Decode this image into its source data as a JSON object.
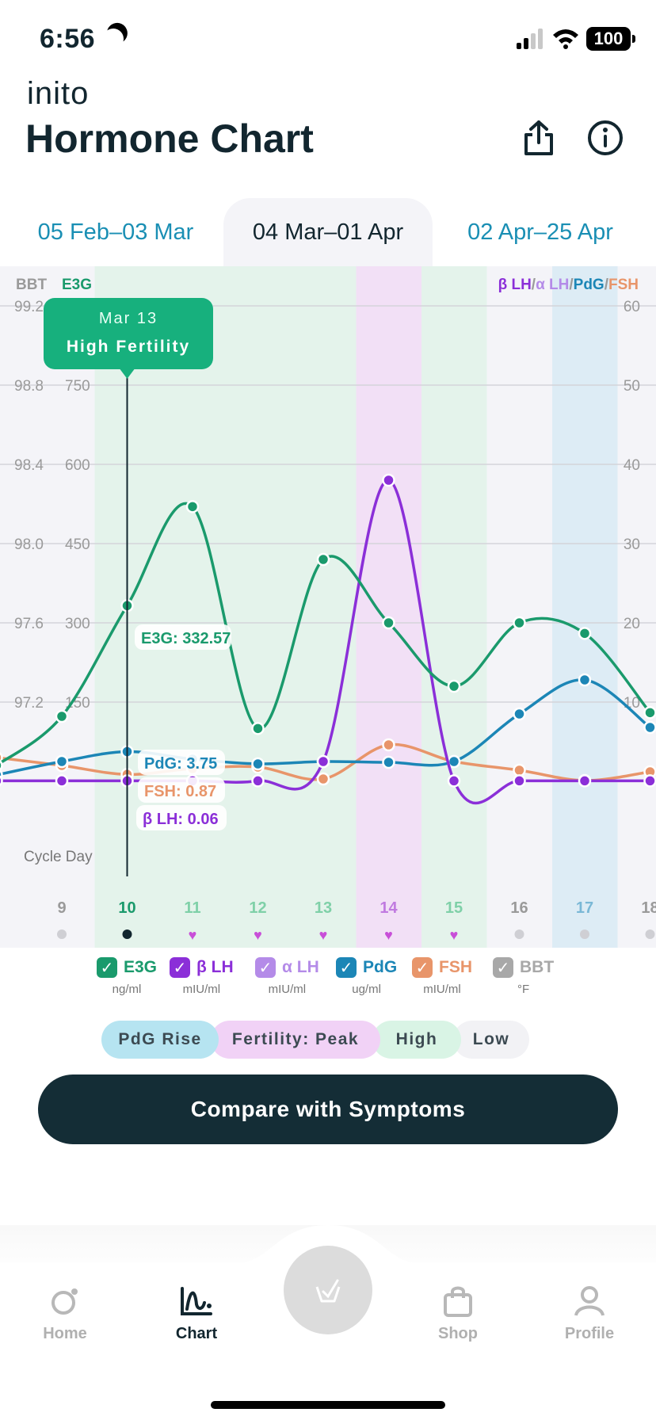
{
  "status_bar": {
    "time": "6:56",
    "battery": "100"
  },
  "header": {
    "brand": "inito",
    "title": "Hormone Chart"
  },
  "tabs": [
    {
      "label": "05 Feb–03 Mar",
      "active": false
    },
    {
      "label": "04 Mar–01 Apr",
      "active": true
    },
    {
      "label": "02 Apr–25 Apr",
      "active": false
    }
  ],
  "chart_top_labels": {
    "bbt": "BBT",
    "e3g": "E3G",
    "lh_beta": "β LH",
    "lh_alpha": "α LH",
    "pdg": "PdG",
    "fsh": "FSH",
    "sep": "/"
  },
  "tooltip": {
    "date": "Mar 13",
    "status": "High Fertility"
  },
  "readouts": {
    "e3g": "E3G: 332.57",
    "pdg": "PdG: 3.75",
    "fsh": "FSH: 0.87",
    "lh": "β LH: 0.06"
  },
  "cycle_day_label": "Cycle Day",
  "chart_data": {
    "type": "line",
    "x": [
      8,
      9,
      10,
      11,
      12,
      13,
      14,
      15,
      16,
      17,
      18
    ],
    "selected_day": 10,
    "left_axis_bbt": {
      "ticks": [
        "99.2",
        "98.8",
        "98.4",
        "98.0",
        "97.6",
        "97.2"
      ],
      "values": [
        99.2,
        98.8,
        98.4,
        98.0,
        97.6,
        97.2
      ]
    },
    "left_axis_e3g": {
      "ticks": [
        "750",
        "600",
        "450",
        "300",
        "150"
      ],
      "values": [
        750,
        600,
        450,
        300,
        150
      ],
      "range": [
        0,
        900
      ]
    },
    "right_axis": {
      "ticks": [
        "60",
        "50",
        "40",
        "30",
        "20",
        "10"
      ],
      "values": [
        60,
        50,
        40,
        30,
        20,
        10
      ],
      "range": [
        0,
        60
      ]
    },
    "x_tick_labels": [
      "9",
      "10",
      "11",
      "12",
      "13",
      "14",
      "15",
      "16",
      "17",
      "18"
    ],
    "day_markers": [
      {
        "day": 9,
        "marker": "dot"
      },
      {
        "day": 10,
        "marker": "dot-selected"
      },
      {
        "day": 11,
        "marker": "heart"
      },
      {
        "day": 12,
        "marker": "heart"
      },
      {
        "day": 13,
        "marker": "heart"
      },
      {
        "day": 14,
        "marker": "heart"
      },
      {
        "day": 15,
        "marker": "heart"
      },
      {
        "day": 16,
        "marker": "dot"
      },
      {
        "day": 17,
        "marker": "dot"
      },
      {
        "day": 18,
        "marker": "dot"
      }
    ],
    "phase_bands": [
      {
        "from": 10,
        "to": 13,
        "phase": "High"
      },
      {
        "from": 14,
        "to": 14,
        "phase": "Fertility: Peak"
      },
      {
        "from": 15,
        "to": 15,
        "phase": "High"
      },
      {
        "from": 17,
        "to": 17,
        "phase": "PdG Rise"
      }
    ],
    "series": [
      {
        "name": "E3G",
        "axis": "left",
        "color": "#1a9a6c",
        "values": [
          30,
          123,
          332.57,
          520,
          100,
          420,
          300,
          180,
          300,
          280,
          130
        ]
      },
      {
        "name": "PdG",
        "axis": "right",
        "color": "#1c86b6",
        "values": [
          0.8,
          2.5,
          3.75,
          2.8,
          2.2,
          2.5,
          2.4,
          2.5,
          8.5,
          12.8,
          6.8
        ]
      },
      {
        "name": "FSH",
        "axis": "right",
        "color": "#e8956a",
        "values": [
          3,
          2.0,
          0.87,
          1.6,
          1.8,
          0.3,
          4.6,
          2.5,
          1.4,
          0.1,
          1.2
        ]
      },
      {
        "name": "β LH",
        "axis": "right",
        "color": "#8b2fd8",
        "values": [
          0.06,
          0.06,
          0.06,
          0.06,
          0.06,
          2.5,
          38,
          0.06,
          0.06,
          0.06,
          0.06
        ]
      }
    ]
  },
  "legend": [
    {
      "name": "E3G",
      "unit": "ng/ml",
      "color": "#1a9a6c"
    },
    {
      "name": "β LH",
      "unit": "mIU/ml",
      "color": "#8b2fd8"
    },
    {
      "name": "α LH",
      "unit": "mIU/ml",
      "color": "#b48be8"
    },
    {
      "name": "PdG",
      "unit": "ug/ml",
      "color": "#1c86b6"
    },
    {
      "name": "FSH",
      "unit": "mIU/ml",
      "color": "#e8956a"
    },
    {
      "name": "BBT",
      "unit": "°F",
      "color": "#a8a8a8"
    }
  ],
  "phase_legend": [
    {
      "label": "PdG Rise",
      "color": "#b6e4f1"
    },
    {
      "label": "Fertility: Peak",
      "color": "#f1d2f6"
    },
    {
      "label": "High",
      "color": "#d9f4e5"
    },
    {
      "label": "Low",
      "color": "#f2f2f5"
    }
  ],
  "compare_button": "Compare with Symptoms",
  "bottom_nav": [
    {
      "label": "Home",
      "icon": "home-icon",
      "active": false
    },
    {
      "label": "Chart",
      "icon": "chart-icon",
      "active": true
    },
    {
      "label": "Shop",
      "icon": "shop-icon",
      "active": false
    },
    {
      "label": "Profile",
      "icon": "profile-icon",
      "active": false
    }
  ]
}
